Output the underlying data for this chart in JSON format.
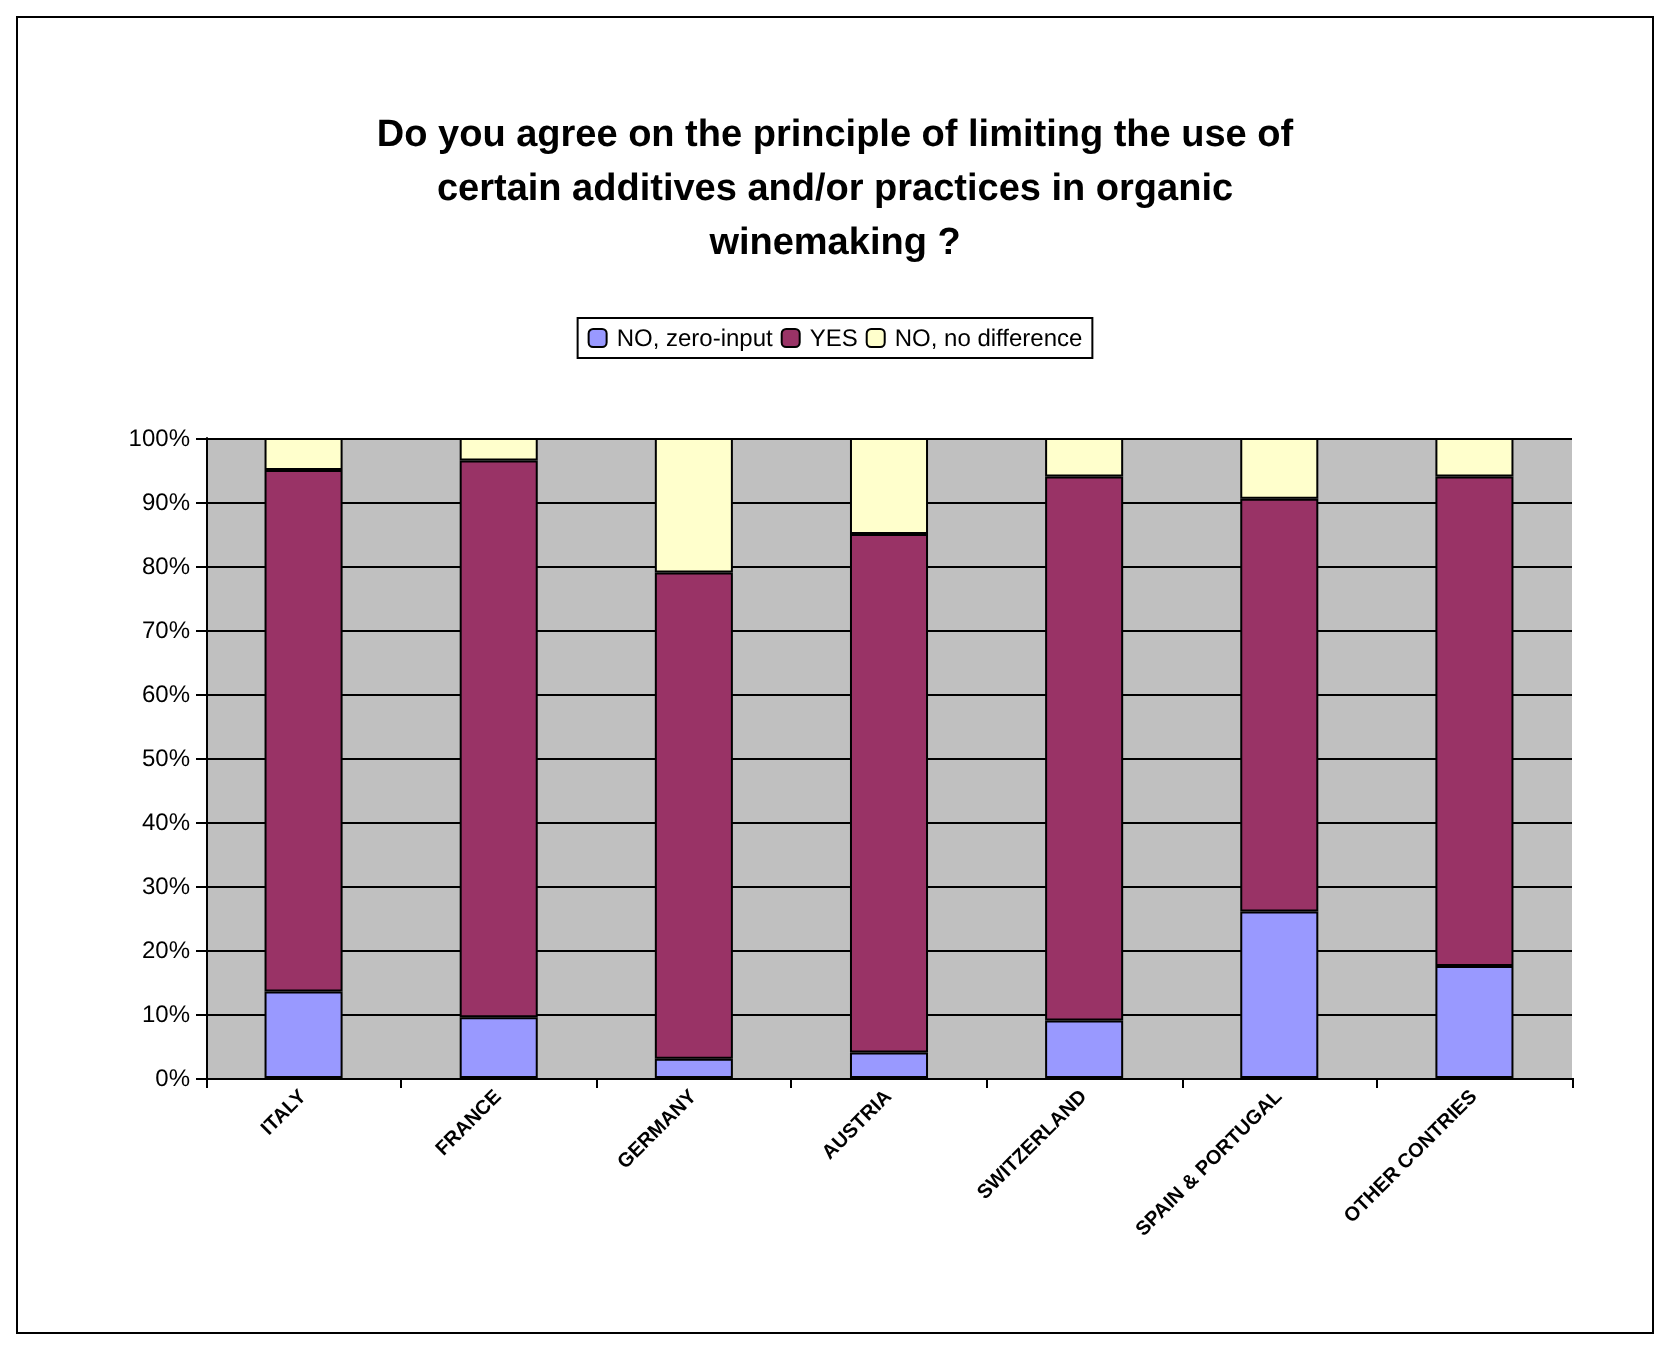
{
  "chart_data": {
    "type": "bar",
    "stacked": true,
    "title": "Do you agree on the principle of limiting the use of\ncertain additives and/or practices in organic\nwinemaking ?",
    "categories": [
      "ITALY",
      "FRANCE",
      "GERMANY",
      "AUSTRIA",
      "SWITZERLAND",
      "SPAIN & PORTUGAL",
      "OTHER CONTRIES"
    ],
    "series": [
      {
        "name": "NO, zero-input",
        "color": "#9999ff",
        "values": [
          13.5,
          9.5,
          3,
          4,
          9,
          26,
          17.5
        ]
      },
      {
        "name": "YES",
        "color": "#993366",
        "values": [
          81.5,
          87,
          76,
          81,
          85,
          64.5,
          76.5
        ]
      },
      {
        "name": "NO, no difference",
        "color": "#ffffcc",
        "values": [
          5,
          3.5,
          21,
          15,
          6,
          9.5,
          6
        ]
      }
    ],
    "ylim": [
      0,
      100
    ],
    "yticks": [
      {
        "value": 0,
        "label": "0%"
      },
      {
        "value": 10,
        "label": "10%"
      },
      {
        "value": 20,
        "label": "20%"
      },
      {
        "value": 30,
        "label": "30%"
      },
      {
        "value": 40,
        "label": "40%"
      },
      {
        "value": 50,
        "label": "50%"
      },
      {
        "value": 60,
        "label": "60%"
      },
      {
        "value": 70,
        "label": "70%"
      },
      {
        "value": 80,
        "label": "80%"
      },
      {
        "value": 90,
        "label": "90%"
      },
      {
        "value": 100,
        "label": "100%"
      }
    ],
    "grid": "y",
    "legend": "top"
  }
}
